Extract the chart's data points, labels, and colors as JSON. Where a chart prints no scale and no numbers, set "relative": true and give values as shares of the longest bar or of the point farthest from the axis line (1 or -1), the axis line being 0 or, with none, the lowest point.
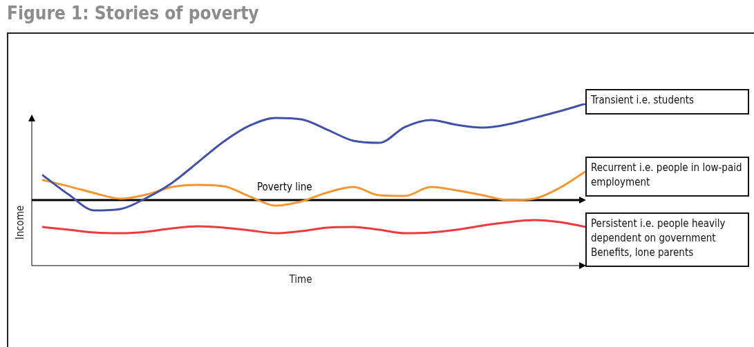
{
  "chart_data": {
    "type": "line",
    "title": "Figure 1: Stories of poverty",
    "xlabel": "Time",
    "ylabel": "Income",
    "relative": true,
    "marker": "none",
    "line_style": "solid",
    "categories": [
      null,
      null,
      null,
      null,
      null,
      null,
      null,
      null,
      null,
      null,
      null,
      null,
      null,
      null,
      null,
      null,
      null,
      null,
      null,
      null,
      null,
      null
    ],
    "series": [
      {
        "name": "Transient i.e. students",
        "color": "#3f51a8",
        "values": [
          0.557,
          0.438,
          0.34,
          0.349,
          0.417,
          0.511,
          0.638,
          0.766,
          0.864,
          0.911,
          0.902,
          0.838,
          0.77,
          0.757,
          0.855,
          0.898,
          0.868,
          0.851,
          0.872,
          0.911,
          0.953,
          1
        ]
      },
      {
        "name": "Recurrent i.e. people in low-paid employment",
        "color": "#f7962f",
        "values": [
          0.528,
          0.489,
          0.447,
          0.413,
          0.438,
          0.485,
          0.498,
          0.489,
          0.426,
          0.37,
          0.396,
          0.451,
          0.485,
          0.434,
          0.43,
          0.485,
          0.464,
          0.434,
          0.404,
          0.413,
          0.481,
          0.583
        ]
      },
      {
        "name": "Persistent i.e. people heavily dependent on government Benefits, lone parents",
        "color": "#ee3a3f",
        "values": [
          0.238,
          0.221,
          0.204,
          0.2,
          0.209,
          0.23,
          0.243,
          0.234,
          0.217,
          0.2,
          0.213,
          0.234,
          0.238,
          0.221,
          0.2,
          0.204,
          0.221,
          0.247,
          0.268,
          0.281,
          0.268,
          0.238
        ]
      }
    ],
    "ref_lines": [
      {
        "axis": "y",
        "value": 0.404,
        "label": "Poverty line",
        "color": "#000000"
      }
    ]
  }
}
